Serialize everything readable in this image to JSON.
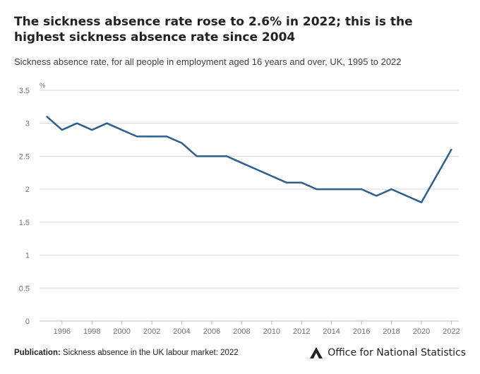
{
  "title": "The sickness absence rate rose to 2.6% in 2022; this is the highest sickness absence rate since 2004",
  "subtitle": "Sickness absence rate, for all people in employment aged 16 years and over, UK, 1995 to 2022",
  "footer": {
    "label": "Publication:",
    "text": "Sickness absence in the UK labour market: 2022"
  },
  "logo_text": "Office for National Statistics",
  "colors": {
    "line": "#2a5f8f",
    "grid": "#d9d9d9",
    "axis": "#707071"
  },
  "chart_data": {
    "type": "line",
    "ylabel": "%",
    "ylim": [
      0,
      3.5
    ],
    "yticks": [
      "0",
      "0.5",
      "1",
      "1.5",
      "2",
      "2.5",
      "3",
      "3.5"
    ],
    "xticks": [
      "1996",
      "1998",
      "2000",
      "2002",
      "2004",
      "2006",
      "2008",
      "2010",
      "2012",
      "2014",
      "2016",
      "2018",
      "2020",
      "2022"
    ],
    "grid": true,
    "x": [
      1995,
      1996,
      1997,
      1998,
      1999,
      2000,
      2001,
      2002,
      2003,
      2004,
      2005,
      2006,
      2007,
      2008,
      2009,
      2010,
      2011,
      2012,
      2013,
      2014,
      2015,
      2016,
      2017,
      2018,
      2019,
      2020,
      2021,
      2022
    ],
    "y": [
      3.1,
      2.9,
      3.0,
      2.9,
      3.0,
      2.9,
      2.8,
      2.8,
      2.8,
      2.7,
      2.5,
      2.5,
      2.5,
      2.4,
      2.3,
      2.2,
      2.1,
      2.1,
      2.0,
      2.0,
      2.0,
      2.0,
      1.9,
      2.0,
      1.9,
      1.8,
      2.2,
      2.6
    ]
  }
}
